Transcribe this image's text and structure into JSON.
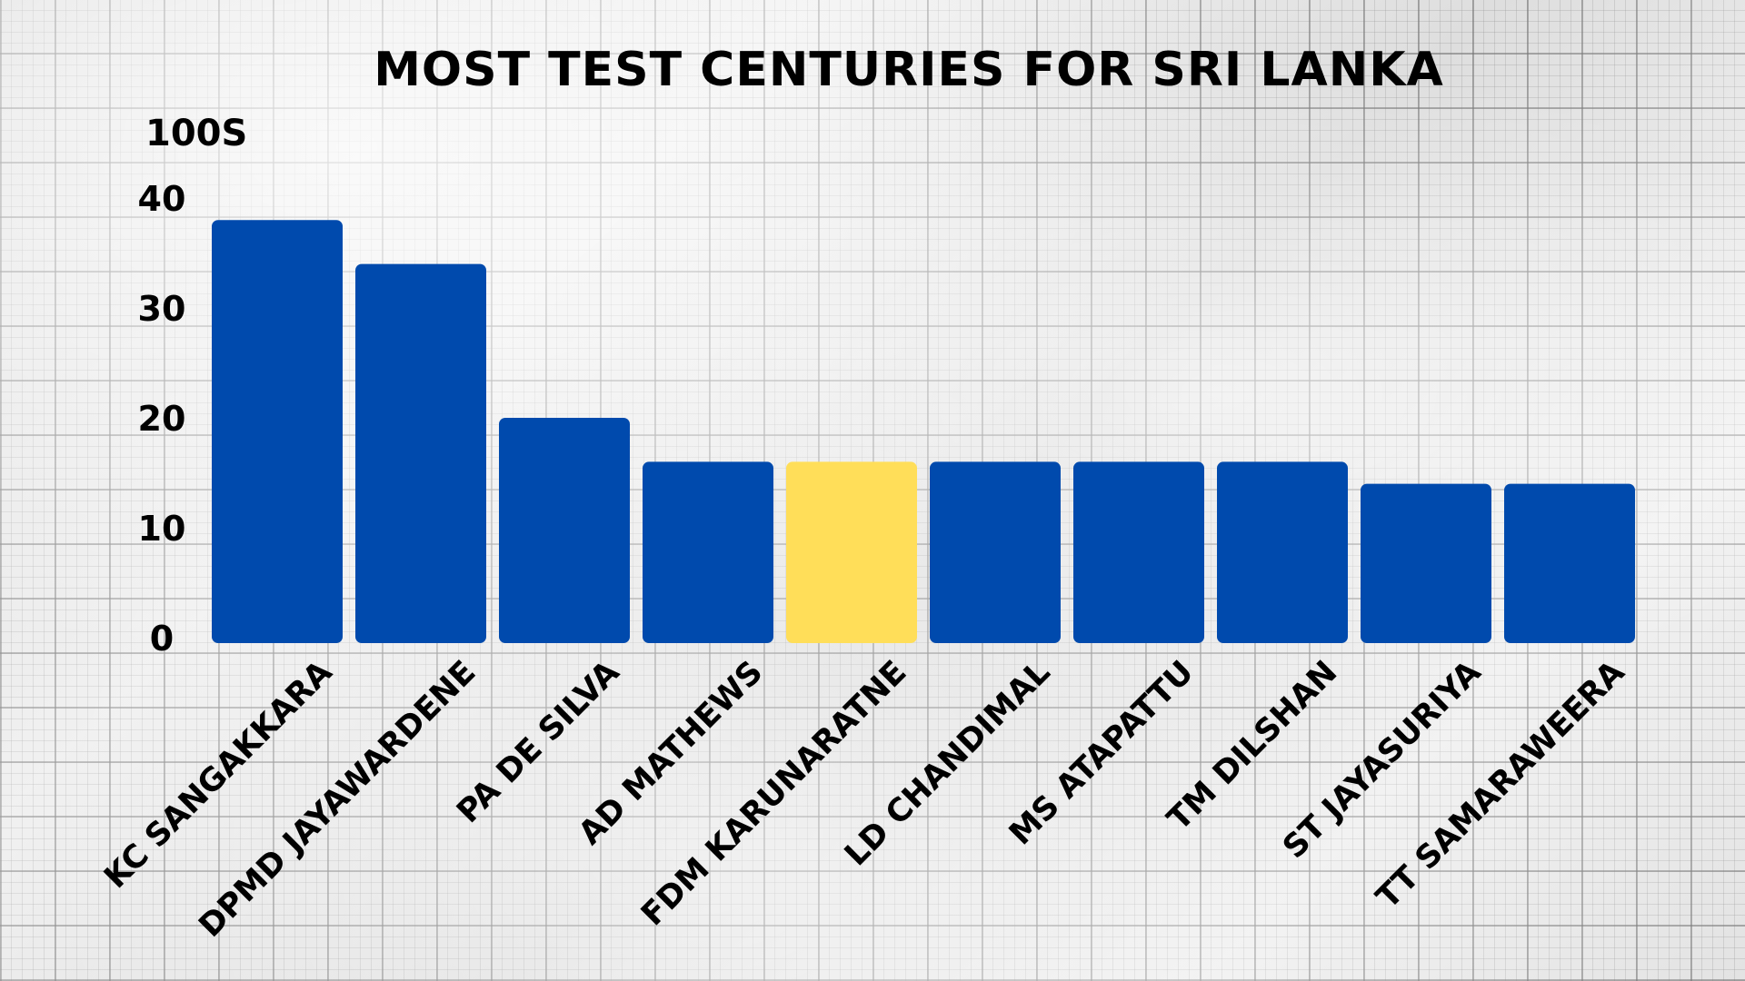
{
  "chart_data": {
    "type": "bar",
    "title": "MOST TEST CENTURIES FOR SRI LANKA",
    "xlabel": "",
    "ylabel": "100S",
    "ylim": [
      0,
      40
    ],
    "yticks": [
      0,
      10,
      20,
      30,
      40
    ],
    "grid": true,
    "categories": [
      "KC SANGAKKARA",
      "DPMD JAYAWARDENE",
      "PA DE SILVA",
      "AD MATHEWS",
      "FDM KARUNARATNE",
      "LD CHANDIMAL",
      "MS ATAPATTU",
      "TM DILSHAN",
      "ST JAYASURIYA",
      "TT SAMARAWEERA"
    ],
    "values": [
      38,
      34,
      20,
      16,
      16,
      16,
      16,
      16,
      14,
      14
    ],
    "highlight_index": 4
  },
  "colors": {
    "bar": "#004aad",
    "highlight": "#ffde59",
    "text": "#000000"
  }
}
